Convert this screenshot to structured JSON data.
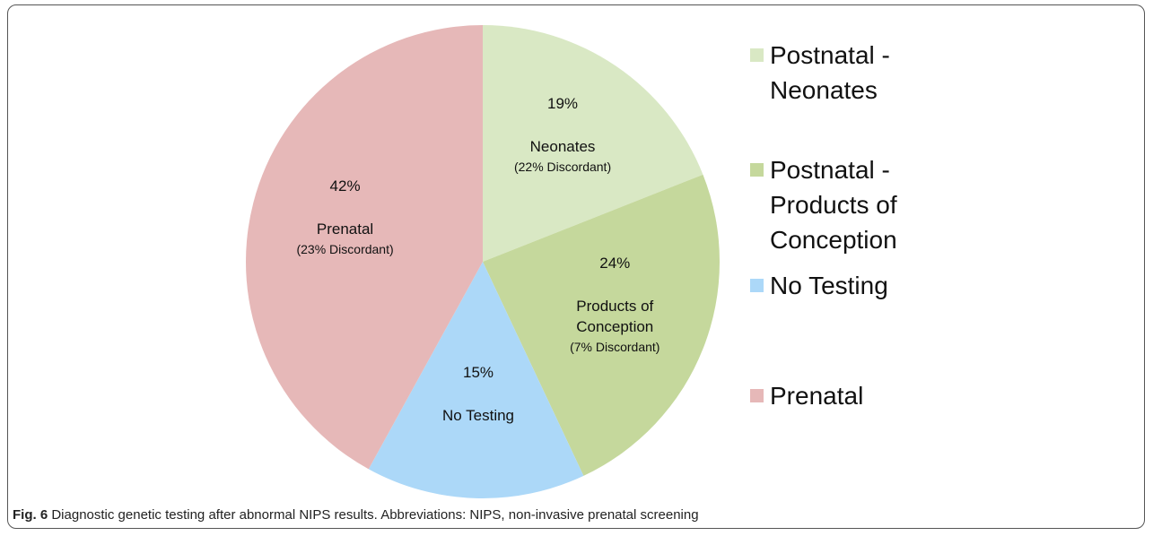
{
  "chart_data": {
    "type": "pie",
    "categories": [
      "Postnatal - Neonates",
      "Postnatal - Products of Conception",
      "No Testing",
      "Prenatal"
    ],
    "values": [
      19,
      24,
      15,
      42
    ],
    "value_labels": [
      "19%",
      "24%",
      "15%",
      "42%"
    ],
    "slice_labels": [
      "Neonates",
      "Products of Conception",
      "No Testing",
      "Prenatal"
    ],
    "slice_notes": [
      "(22% Discordant)",
      "(7% Discordant)",
      null,
      "(23% Discordant)"
    ],
    "colors": [
      "#d9e8c4",
      "#c5d89c",
      "#acd8f8",
      "#e6b8b8"
    ],
    "legend": "right"
  },
  "caption": {
    "label": "Fig. 6",
    "text": "Diagnostic genetic testing after abnormal NIPS results. Abbreviations: NIPS, non-invasive prenatal screening"
  }
}
